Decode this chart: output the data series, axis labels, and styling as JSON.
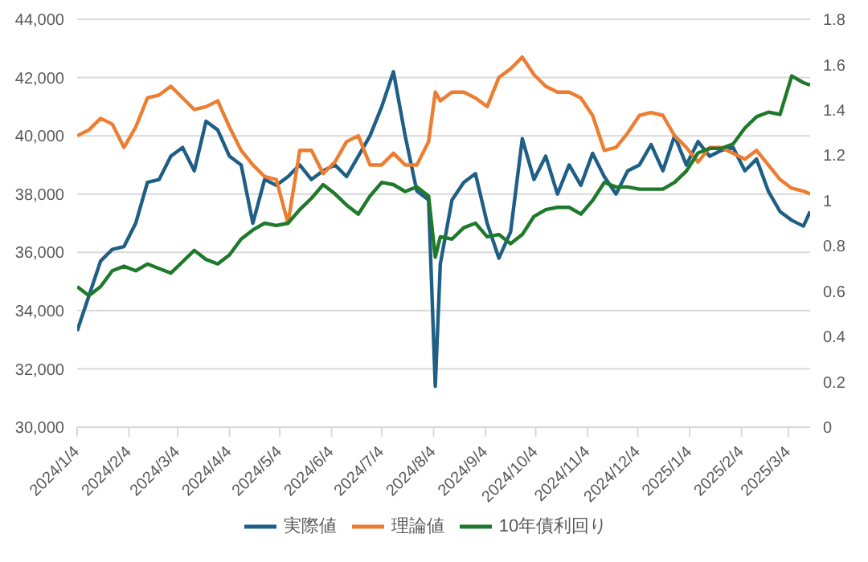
{
  "chart_data": {
    "type": "line",
    "x": [
      "2024-01-04",
      "2024-01-11",
      "2024-01-18",
      "2024-01-25",
      "2024-02-01",
      "2024-02-08",
      "2024-02-15",
      "2024-02-22",
      "2024-02-29",
      "2024-03-07",
      "2024-03-14",
      "2024-03-21",
      "2024-03-28",
      "2024-04-04",
      "2024-04-11",
      "2024-04-18",
      "2024-04-25",
      "2024-05-02",
      "2024-05-09",
      "2024-05-16",
      "2024-05-23",
      "2024-05-30",
      "2024-06-06",
      "2024-06-13",
      "2024-06-20",
      "2024-06-27",
      "2024-07-04",
      "2024-07-11",
      "2024-07-18",
      "2024-07-25",
      "2024-08-01",
      "2024-08-05",
      "2024-08-08",
      "2024-08-15",
      "2024-08-22",
      "2024-08-29",
      "2024-09-05",
      "2024-09-12",
      "2024-09-19",
      "2024-09-26",
      "2024-10-03",
      "2024-10-10",
      "2024-10-17",
      "2024-10-24",
      "2024-10-31",
      "2024-11-07",
      "2024-11-14",
      "2024-11-21",
      "2024-11-28",
      "2024-12-05",
      "2024-12-12",
      "2024-12-19",
      "2024-12-26",
      "2025-01-02",
      "2025-01-09",
      "2025-01-16",
      "2025-01-23",
      "2025-01-30",
      "2025-02-06",
      "2025-02-13",
      "2025-02-20",
      "2025-02-27",
      "2025-03-06",
      "2025-03-13",
      "2025-03-17"
    ],
    "series": [
      {
        "name": "実際値",
        "color": "#1f5f86",
        "values": [
          33300,
          34500,
          35700,
          36100,
          36200,
          37000,
          38400,
          38500,
          39300,
          39600,
          38800,
          40500,
          40200,
          39300,
          39000,
          37000,
          38500,
          38300,
          38600,
          39000,
          38500,
          38800,
          39000,
          38600,
          39300,
          40000,
          41000,
          42200,
          40000,
          38100,
          37800,
          31400,
          35600,
          37800,
          38400,
          38700,
          37000,
          35800,
          36700,
          39900,
          38500,
          39300,
          38000,
          39000,
          38300,
          39400,
          38600,
          38000,
          38800,
          39000,
          39700,
          38800,
          40000,
          39000,
          39800,
          39300,
          39500,
          39600,
          38800,
          39200,
          38100,
          37400,
          37100,
          36900,
          37400
        ]
      },
      {
        "name": "理論値",
        "color": "#ed7d31",
        "values": [
          40000,
          40200,
          40600,
          40400,
          39600,
          40300,
          41300,
          41400,
          41700,
          41300,
          40900,
          41000,
          41200,
          40300,
          39500,
          39000,
          38600,
          38500,
          37000,
          39500,
          39500,
          38700,
          39100,
          39800,
          40000,
          39000,
          39000,
          39400,
          39000,
          39000,
          39800,
          41500,
          41200,
          41500,
          41500,
          41300,
          41000,
          42000,
          42300,
          42700,
          42100,
          41700,
          41500,
          41500,
          41300,
          40700,
          39500,
          39600,
          40100,
          40700,
          40800,
          40700,
          40000,
          39600,
          39100,
          39600,
          39600,
          39400,
          39200,
          39500,
          39000,
          38500,
          38200,
          38100,
          38000
        ]
      },
      {
        "name": "10年債利回り",
        "color": "#1e7a2a",
        "axis": "y2",
        "values": [
          0.62,
          0.58,
          0.62,
          0.69,
          0.71,
          0.69,
          0.72,
          0.7,
          0.68,
          0.73,
          0.78,
          0.74,
          0.72,
          0.76,
          0.83,
          0.87,
          0.9,
          0.89,
          0.9,
          0.96,
          1.01,
          1.07,
          1.03,
          0.98,
          0.94,
          1.02,
          1.08,
          1.07,
          1.04,
          1.06,
          1.02,
          0.75,
          0.84,
          0.83,
          0.88,
          0.9,
          0.84,
          0.85,
          0.81,
          0.85,
          0.93,
          0.96,
          0.97,
          0.97,
          0.94,
          1.0,
          1.08,
          1.06,
          1.06,
          1.05,
          1.05,
          1.05,
          1.08,
          1.13,
          1.21,
          1.23,
          1.23,
          1.25,
          1.32,
          1.37,
          1.39,
          1.38,
          1.55,
          1.52,
          1.51
        ]
      }
    ],
    "xlim": [
      "2024-01-04",
      "2025-03-17"
    ],
    "xticks": [
      {
        "value": "2024-01-04",
        "label": "2024/1/4"
      },
      {
        "value": "2024-02-04",
        "label": "2024/2/4"
      },
      {
        "value": "2024-03-04",
        "label": "2024/3/4"
      },
      {
        "value": "2024-04-04",
        "label": "2024/4/4"
      },
      {
        "value": "2024-05-04",
        "label": "2024/5/4"
      },
      {
        "value": "2024-06-04",
        "label": "2024/6/4"
      },
      {
        "value": "2024-07-04",
        "label": "2024/7/4"
      },
      {
        "value": "2024-08-04",
        "label": "2024/8/4"
      },
      {
        "value": "2024-09-04",
        "label": "2024/9/4"
      },
      {
        "value": "2024-10-04",
        "label": "2024/10/4"
      },
      {
        "value": "2024-11-04",
        "label": "2024/11/4"
      },
      {
        "value": "2024-12-04",
        "label": "2024/12/4"
      },
      {
        "value": "2025-01-04",
        "label": "2025/1/4"
      },
      {
        "value": "2025-02-04",
        "label": "2025/2/4"
      },
      {
        "value": "2025-03-04",
        "label": "2025/3/4"
      }
    ],
    "ylim": [
      30000,
      44000
    ],
    "yticks": [
      {
        "value": 30000,
        "label": "30,000"
      },
      {
        "value": 32000,
        "label": "32,000"
      },
      {
        "value": 34000,
        "label": "34,000"
      },
      {
        "value": 36000,
        "label": "36,000"
      },
      {
        "value": 38000,
        "label": "38,000"
      },
      {
        "value": 40000,
        "label": "40,000"
      },
      {
        "value": 42000,
        "label": "42,000"
      },
      {
        "value": 44000,
        "label": "44,000"
      }
    ],
    "y2lim": [
      0,
      1.8
    ],
    "y2ticks": [
      0,
      0.2,
      0.4,
      0.6,
      0.8,
      1,
      1.2,
      1.4,
      1.6,
      1.8
    ],
    "grid": "y",
    "legend": "bottom"
  }
}
